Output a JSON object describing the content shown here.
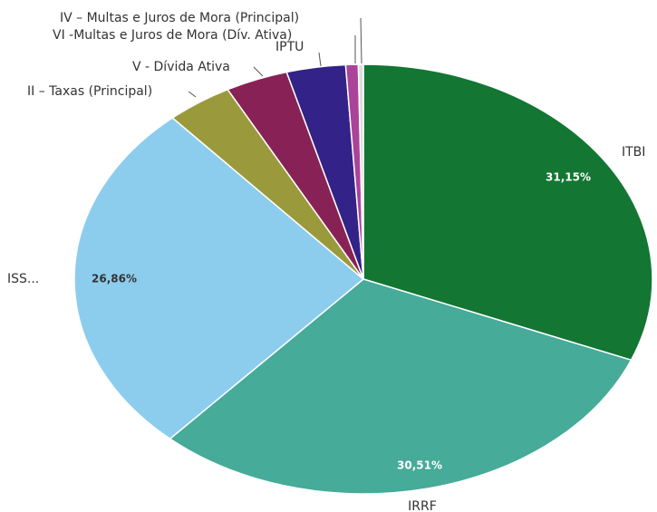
{
  "chart_data": {
    "type": "pie",
    "slices": [
      {
        "name": "ITBI",
        "value": 31.15,
        "label": "31,15%",
        "color": "#137633",
        "label_color": "#ffffff"
      },
      {
        "name": "IRRF",
        "value": 30.51,
        "label": "30,51%",
        "color": "#46ab99",
        "label_color": "#ffffff"
      },
      {
        "name": "ISS...",
        "value": 26.86,
        "label": "26,86%",
        "color": "#8ccdee",
        "label_color": "#333333"
      },
      {
        "name": "II – Taxas (Principal)",
        "value": 3.7,
        "label": "",
        "color": "#9a9a3c",
        "label_color": "#ffffff"
      },
      {
        "name": "V - Dívida Ativa",
        "value": 3.5,
        "label": "",
        "color": "#882256",
        "label_color": "#ffffff"
      },
      {
        "name": "IPTU",
        "value": 3.3,
        "label": "",
        "color": "#332287",
        "label_color": "#ffffff"
      },
      {
        "name": "VI -Multas e Juros de Mora (Dív. Ativa)",
        "value": 0.7,
        "label": "",
        "color": "#aa4499",
        "label_color": "#ffffff"
      },
      {
        "name": "IV – Multas e Juros de Mora (Principal)",
        "value": 0.28,
        "label": "",
        "color": "#dddddd",
        "label_color": "#ffffff"
      }
    ]
  }
}
